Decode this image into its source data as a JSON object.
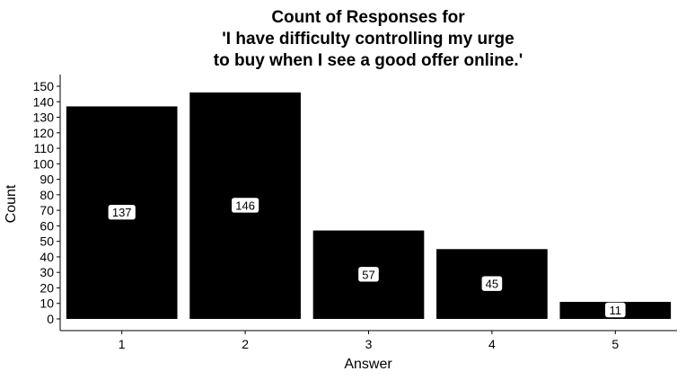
{
  "chart_data": {
    "type": "bar",
    "title_lines": [
      "Count of Responses for",
      "'I have difficulty controlling my urge",
      "to buy when I see a good offer online.'"
    ],
    "xlabel": "Answer",
    "ylabel": "Count",
    "categories": [
      "1",
      "2",
      "3",
      "4",
      "5"
    ],
    "values": [
      137,
      146,
      57,
      45,
      11
    ],
    "ylim": [
      0,
      150
    ],
    "yticks": [
      0,
      10,
      20,
      30,
      40,
      50,
      60,
      70,
      80,
      90,
      100,
      110,
      120,
      130,
      140,
      150
    ],
    "grid": false,
    "legend": "none",
    "bar_color": "#000000",
    "label_box_color": "#ffffff"
  }
}
